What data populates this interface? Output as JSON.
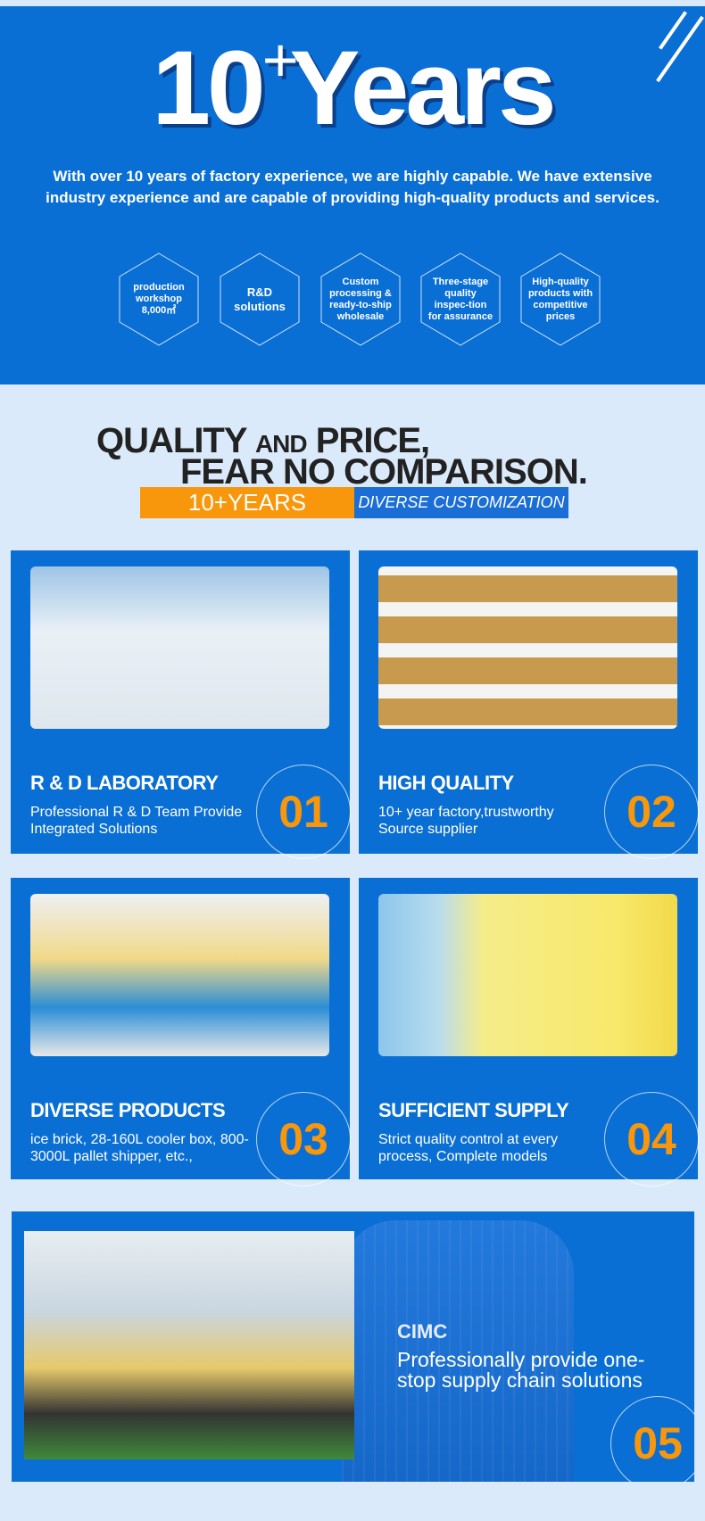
{
  "hero": {
    "number": "10",
    "plus": "+",
    "word": "Years",
    "intro": "With over 10 years of factory experience, we are highly capable. We have extensive industry experience and are capable of providing high-quality products and services.",
    "features": [
      "production workshop 8,000㎡",
      "R&D solutions",
      "Custom processing & ready-to-ship wholesale",
      "Three-stage quality inspec-tion for assurance",
      "High-quality products with competitive prices"
    ]
  },
  "slogan": {
    "line1a": "QUALITY",
    "line1b": "AND",
    "line1c": "PRICE,",
    "line2": "FEAR NO COMPARISON.",
    "tag1": "10+YEARS",
    "tag2": "DIVERSE CUSTOMIZATION"
  },
  "cards": [
    {
      "title": "R & D LABORATORY",
      "desc": "Professional R & D Team Provide Integrated Solutions",
      "num": "01"
    },
    {
      "title": "HIGH QUALITY",
      "desc": "10+ year factory,trustworthy Source supplier",
      "num": "02"
    },
    {
      "title": "DIVERSE PRODUCTS",
      "desc": "ice brick, 28-160L cooler box, 800-3000L pallet shipper, etc.,",
      "num": "03"
    },
    {
      "title": "SUFFICIENT SUPPLY",
      "desc": "Strict quality control at every process, Complete models",
      "num": "04"
    }
  ],
  "banner": {
    "brand": "CIMC",
    "text": "Professionally provide one-stop supply chain solutions",
    "num": "05"
  },
  "colors": {
    "blue": "#0a6fd4",
    "orange": "#f8970b",
    "bg": "#dbeafa"
  }
}
